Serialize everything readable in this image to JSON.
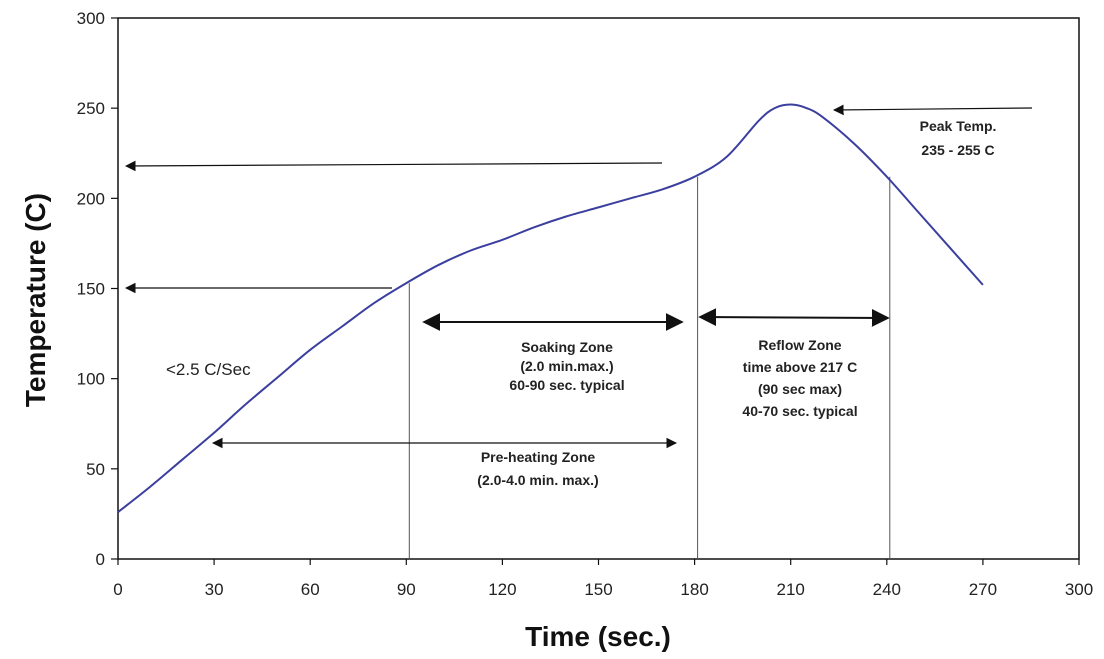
{
  "chart_data": {
    "type": "line",
    "title": "",
    "xlabel": "Time (sec.)",
    "ylabel": "Temperature (C)",
    "xlim": [
      0,
      300
    ],
    "ylim": [
      0,
      300
    ],
    "xticks": [
      0,
      30,
      60,
      90,
      120,
      150,
      180,
      210,
      240,
      270,
      300
    ],
    "yticks": [
      0,
      50,
      100,
      150,
      200,
      250,
      300
    ],
    "grid": false,
    "line_color": "#3b3f9e",
    "series": [
      {
        "x": [
          0,
          10,
          20,
          30,
          40,
          50,
          60,
          70,
          80,
          90,
          100,
          110,
          120,
          130,
          140,
          150,
          160,
          170,
          180,
          190,
          200,
          205,
          210,
          215,
          220,
          230,
          240,
          250,
          260,
          270
        ],
        "y": [
          26,
          40,
          55,
          70,
          86,
          101,
          116,
          129,
          142,
          153,
          163,
          171,
          177,
          184,
          190,
          195,
          200,
          205,
          212,
          223,
          243,
          250,
          252,
          250,
          245,
          230,
          212,
          192,
          172,
          152
        ]
      }
    ],
    "vertical_markers": [
      90,
      180,
      240
    ],
    "annotations": {
      "slope": "<2.5 C/Sec",
      "peak": [
        "Peak Temp.",
        "235 - 255 C"
      ],
      "soaking": [
        "Soaking Zone",
        "(2.0 min.max.)",
        "60-90 sec. typical"
      ],
      "reflow": [
        "Reflow Zone",
        "time above 217 C",
        "(90 sec max)",
        "40-70 sec. typical"
      ],
      "preheating": [
        "Pre-heating Zone",
        "(2.0-4.0 min. max.)"
      ]
    }
  }
}
